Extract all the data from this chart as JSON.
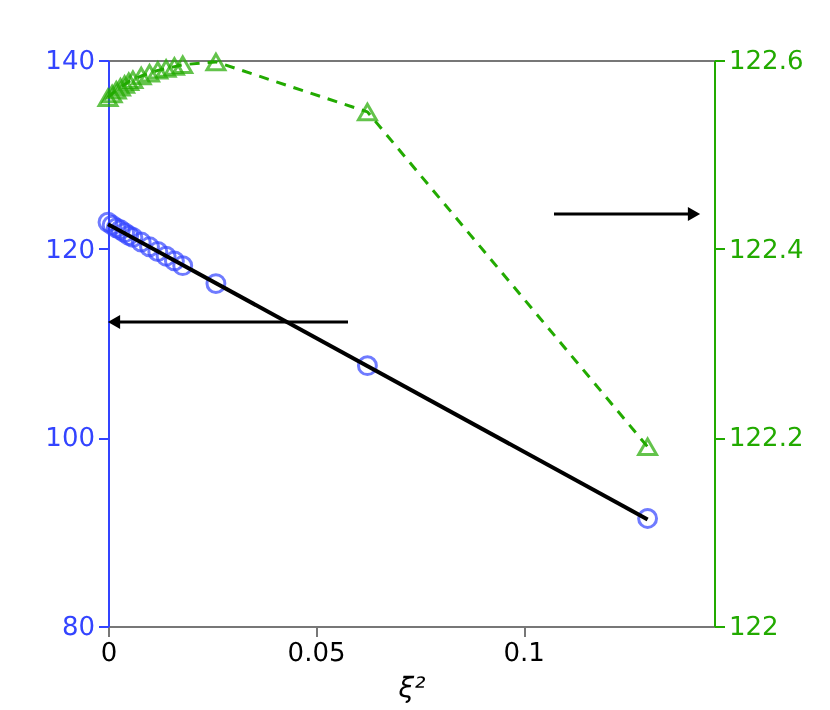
{
  "chart_data": {
    "type": "scatter",
    "xlabel": "ξ²",
    "xlim": [
      0,
      0.146
    ],
    "xticks": [
      0,
      0.05,
      0.1
    ],
    "ylim": [
      80,
      140
    ],
    "yticks": [
      80,
      100,
      120,
      140
    ],
    "y2lim": [
      122,
      122.6
    ],
    "y2ticks": [
      122,
      122.2,
      122.4,
      122.6
    ],
    "grid": false,
    "series": [
      {
        "type": "scatter",
        "color": "#3344ff",
        "marker": "circle",
        "x": [
          0,
          0.001,
          0.002,
          0.003,
          0.004,
          0.005,
          0.006,
          0.008,
          0.01,
          0.012,
          0.014,
          0.016,
          0.018,
          0.026,
          0.0625,
          0.13
        ],
        "values": [
          122.8,
          122.5,
          122.2,
          122,
          121.7,
          121.4,
          121.2,
          120.7,
          120.2,
          119.7,
          119.2,
          118.7,
          118.2,
          116.3,
          107.6,
          91.4
        ]
      },
      {
        "type": "line",
        "color": "#000000",
        "marker": "none",
        "line_style": "solid",
        "x": [
          0,
          0.13
        ],
        "values": [
          122.6,
          91.3
        ]
      },
      {
        "type": "line",
        "color": "#22aa00",
        "marker": "triangle",
        "line_style": "dashed",
        "axis": "y2",
        "x": [
          0,
          0.001,
          0.002,
          0.003,
          0.004,
          0.005,
          0.006,
          0.008,
          0.01,
          0.012,
          0.014,
          0.016,
          0.018,
          0.026,
          0.0625,
          0.13
        ],
        "values": [
          122.56,
          122.564,
          122.568,
          122.571,
          122.574,
          122.577,
          122.579,
          122.583,
          122.586,
          122.589,
          122.591,
          122.593,
          122.595,
          122.598,
          122.545,
          122.19
        ]
      }
    ]
  }
}
